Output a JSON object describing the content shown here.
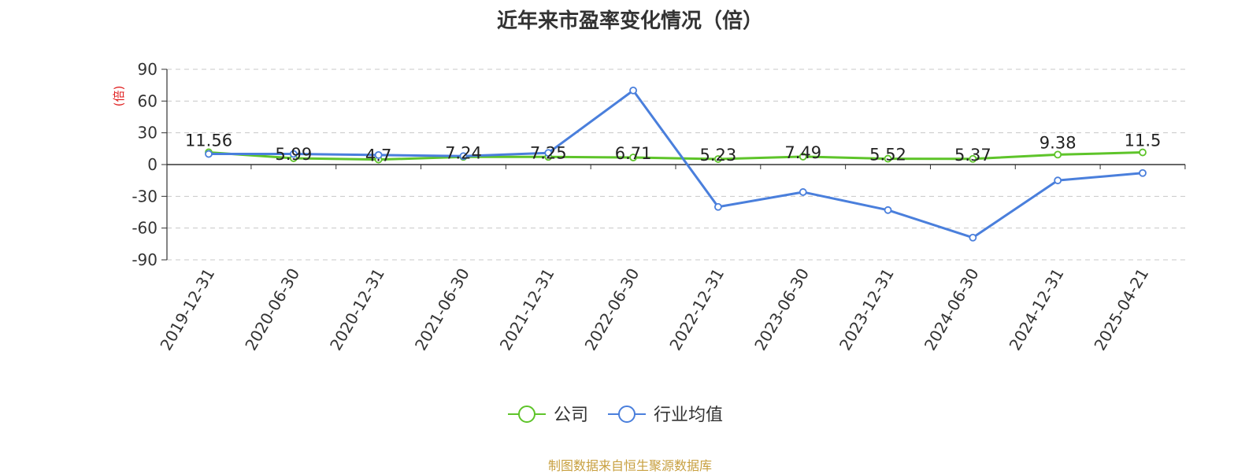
{
  "chart_data": {
    "type": "line",
    "title": "近年来市盈率变化情况（倍）",
    "ylabel": "(倍)",
    "xlabel": "",
    "categories": [
      "2019-12-31",
      "2020-06-30",
      "2020-12-31",
      "2021-06-30",
      "2021-12-31",
      "2022-06-30",
      "2022-12-31",
      "2023-06-30",
      "2023-12-31",
      "2024-06-30",
      "2024-12-31",
      "2025-04-21"
    ],
    "yticks": [
      90,
      60,
      30,
      0,
      -30,
      -60,
      -90
    ],
    "ylim": [
      -90,
      90
    ],
    "grid": true,
    "legend_position": "bottom",
    "series": [
      {
        "name": "公司",
        "color": "#5ec42a",
        "values": [
          11.56,
          5.99,
          4.7,
          7.24,
          7.25,
          6.71,
          5.23,
          7.49,
          5.52,
          5.37,
          9.38,
          11.5
        ],
        "labels": [
          "11.56",
          "5.99",
          "4.7",
          "7.24",
          "7.25",
          "6.71",
          "5.23",
          "7.49",
          "5.52",
          "5.37",
          "9.38",
          "11.5"
        ]
      },
      {
        "name": "行业均值",
        "color": "#4a7fdc",
        "values": [
          10,
          10,
          9,
          8,
          11,
          70,
          -40,
          -26,
          -43,
          -69,
          -15,
          -8
        ]
      }
    ]
  },
  "footer": {
    "source": "制图数据来自恒生聚源数据库"
  }
}
